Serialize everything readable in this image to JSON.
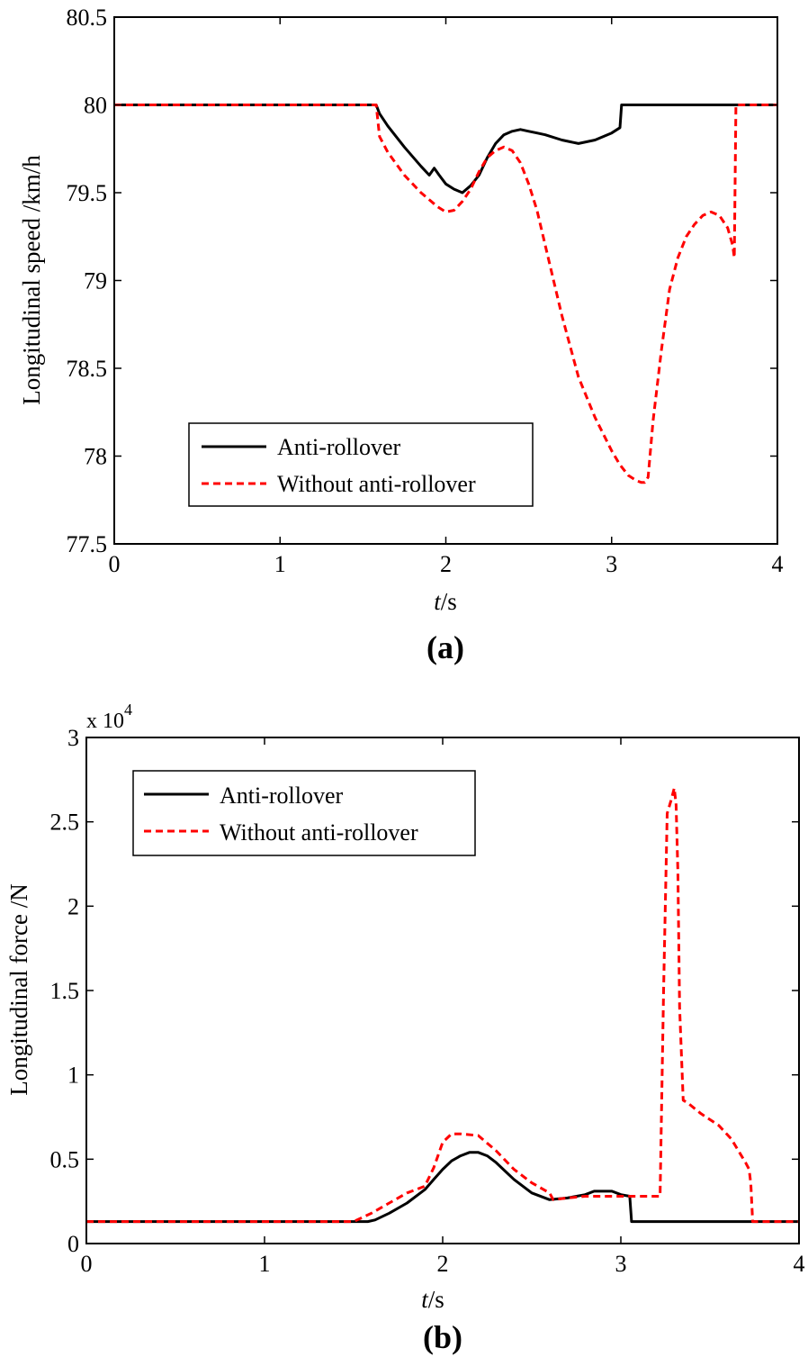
{
  "figure": {
    "panel_a_label": "(a)",
    "panel_b_label": "(b)"
  },
  "chart_data": [
    {
      "type": "line",
      "panel": "(a)",
      "xlabel_italic": "t",
      "xlabel_rest": "/s",
      "ylabel": "Longitudinal speed /km/h",
      "xlim": [
        0,
        4
      ],
      "ylim": [
        77.5,
        80.5
      ],
      "xticks": [
        0,
        1,
        2,
        3,
        4
      ],
      "xtick_labels": [
        "0",
        "1",
        "2",
        "3",
        "4"
      ],
      "yticks": [
        77.5,
        78,
        78.5,
        79,
        79.5,
        80,
        80.5
      ],
      "ytick_labels": [
        "77.5",
        "78",
        "78.5",
        "79",
        "79.5",
        "80",
        "80.5"
      ],
      "grid": false,
      "legend_position": "lower-left",
      "series": [
        {
          "name": "Anti-rollover",
          "color": "#000000",
          "style": "solid",
          "x": [
            0,
            1.58,
            1.6,
            1.65,
            1.75,
            1.85,
            1.9,
            1.93,
            1.96,
            2.0,
            2.05,
            2.1,
            2.15,
            2.2,
            2.25,
            2.3,
            2.35,
            2.4,
            2.45,
            2.5,
            2.55,
            2.6,
            2.7,
            2.8,
            2.9,
            3.0,
            3.05,
            3.06,
            4.0
          ],
          "y": [
            80,
            80,
            79.95,
            79.88,
            79.76,
            79.65,
            79.6,
            79.64,
            79.6,
            79.55,
            79.52,
            79.5,
            79.54,
            79.6,
            79.7,
            79.78,
            79.83,
            79.85,
            79.86,
            79.85,
            79.84,
            79.83,
            79.8,
            79.78,
            79.8,
            79.84,
            79.87,
            80,
            80
          ]
        },
        {
          "name": "Without anti-rollover",
          "color": "#ff0000",
          "style": "dashed",
          "x": [
            0,
            1.58,
            1.6,
            1.65,
            1.75,
            1.85,
            1.95,
            2.0,
            2.05,
            2.1,
            2.15,
            2.2,
            2.25,
            2.3,
            2.35,
            2.4,
            2.45,
            2.5,
            2.55,
            2.6,
            2.7,
            2.8,
            2.9,
            3.0,
            3.05,
            3.1,
            3.15,
            3.18,
            3.2,
            3.22,
            3.25,
            3.3,
            3.35,
            3.4,
            3.45,
            3.5,
            3.55,
            3.6,
            3.65,
            3.7,
            3.73,
            3.74,
            3.75,
            4.0
          ],
          "y": [
            80,
            80,
            79.82,
            79.73,
            79.6,
            79.5,
            79.42,
            79.39,
            79.4,
            79.45,
            79.52,
            79.62,
            79.7,
            79.74,
            79.76,
            79.74,
            79.67,
            79.55,
            79.4,
            79.2,
            78.8,
            78.45,
            78.22,
            78.03,
            77.95,
            77.89,
            77.86,
            77.85,
            77.85,
            77.88,
            78.2,
            78.6,
            78.95,
            79.13,
            79.25,
            79.32,
            79.37,
            79.39,
            79.37,
            79.3,
            79.2,
            79.13,
            80,
            80
          ]
        }
      ]
    },
    {
      "type": "line",
      "panel": "(b)",
      "xlabel_italic": "t",
      "xlabel_rest": "/s",
      "ylabel": "Longitudinal force /N",
      "exponent_base": "x 10",
      "exponent_power": "4",
      "xlim": [
        0,
        4
      ],
      "ylim": [
        0,
        3
      ],
      "xticks": [
        0,
        1,
        2,
        3,
        4
      ],
      "xtick_labels": [
        "0",
        "1",
        "2",
        "3",
        "4"
      ],
      "yticks": [
        0,
        0.5,
        1,
        1.5,
        2,
        2.5,
        3
      ],
      "ytick_labels": [
        "0",
        "0.5",
        "1",
        "1.5",
        "2",
        "2.5",
        "3"
      ],
      "grid": false,
      "legend_position": "top-left",
      "series": [
        {
          "name": "Anti-rollover",
          "color": "#000000",
          "style": "solid",
          "x": [
            0,
            1.58,
            1.62,
            1.7,
            1.8,
            1.9,
            1.95,
            2.0,
            2.05,
            2.1,
            2.15,
            2.2,
            2.25,
            2.3,
            2.4,
            2.5,
            2.6,
            2.7,
            2.8,
            2.85,
            2.9,
            2.95,
            3.0,
            3.05,
            3.06,
            4.0
          ],
          "y": [
            0.13,
            0.13,
            0.14,
            0.18,
            0.24,
            0.32,
            0.38,
            0.44,
            0.49,
            0.52,
            0.54,
            0.54,
            0.52,
            0.48,
            0.38,
            0.3,
            0.26,
            0.27,
            0.29,
            0.31,
            0.31,
            0.31,
            0.29,
            0.28,
            0.13,
            0.13
          ]
        },
        {
          "name": "Without anti-rollover",
          "color": "#ff0000",
          "style": "dashed",
          "x": [
            0,
            1.5,
            1.6,
            1.7,
            1.8,
            1.85,
            1.9,
            1.95,
            2.0,
            2.05,
            2.1,
            2.2,
            2.3,
            2.4,
            2.5,
            2.6,
            2.62,
            2.7,
            2.8,
            3.0,
            3.1,
            3.2,
            3.22,
            3.24,
            3.26,
            3.28,
            3.3,
            3.31,
            3.32,
            3.33,
            3.35,
            3.38,
            3.45,
            3.55,
            3.62,
            3.66,
            3.7,
            3.72,
            3.73,
            3.74,
            4.0
          ],
          "y": [
            0.13,
            0.13,
            0.18,
            0.24,
            0.3,
            0.32,
            0.34,
            0.45,
            0.6,
            0.65,
            0.65,
            0.64,
            0.55,
            0.44,
            0.36,
            0.3,
            0.26,
            0.27,
            0.28,
            0.28,
            0.28,
            0.28,
            0.28,
            1.5,
            2.55,
            2.62,
            2.7,
            2.6,
            2.2,
            1.4,
            0.85,
            0.83,
            0.77,
            0.7,
            0.62,
            0.55,
            0.48,
            0.44,
            0.35,
            0.13,
            0.13
          ]
        }
      ]
    }
  ]
}
